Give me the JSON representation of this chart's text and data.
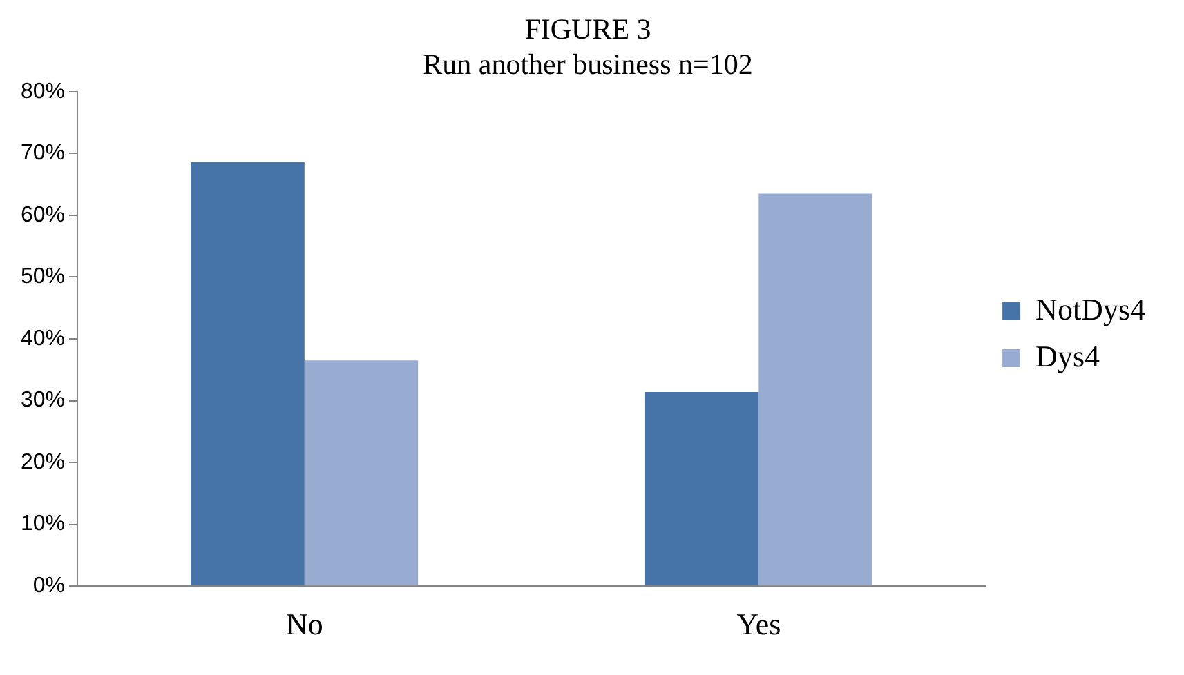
{
  "chart_data": {
    "type": "bar",
    "title": "FIGURE 3",
    "subtitle": "Run another business n=102",
    "categories": [
      "No",
      "Yes"
    ],
    "series": [
      {
        "name": "NotDys4",
        "color": "#4674a8",
        "values": [
          68.6,
          31.4
        ]
      },
      {
        "name": "Dys4",
        "color": "#98acd2",
        "values": [
          36.5,
          63.5
        ]
      }
    ],
    "ylim": [
      0,
      80
    ],
    "yticks": [
      {
        "value": 0,
        "label": "0%"
      },
      {
        "value": 10,
        "label": "10%"
      },
      {
        "value": 20,
        "label": "20%"
      },
      {
        "value": 30,
        "label": "30%"
      },
      {
        "value": 40,
        "label": "40%"
      },
      {
        "value": 50,
        "label": "50%"
      },
      {
        "value": 60,
        "label": "60%"
      },
      {
        "value": 70,
        "label": "70%"
      },
      {
        "value": 80,
        "label": "80%"
      }
    ],
    "grid": false,
    "legend": "right"
  }
}
